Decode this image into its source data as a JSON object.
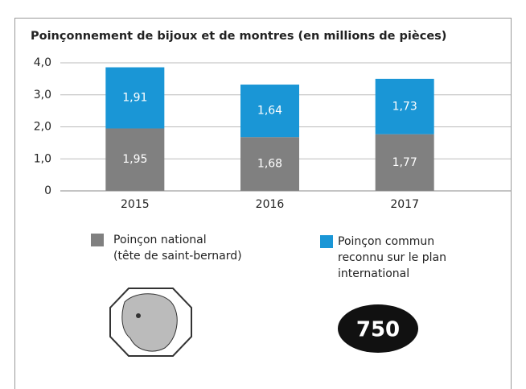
{
  "chart_data": {
    "type": "stacked_bar",
    "title": "Poinçonnement de bijoux et de montres (en millions de pièces)",
    "categories": [
      "2015",
      "2016",
      "2017"
    ],
    "series": [
      {
        "name": "Poinçon national\n(tête de saint-bernard)",
        "color": "#808080",
        "values": [
          1.95,
          1.68,
          1.77
        ],
        "value_labels": [
          "1,95",
          "1,68",
          "1,77"
        ]
      },
      {
        "name": "Poinçon commun\nreconnu sur le plan\ninternational",
        "color": "#1a96d6",
        "values": [
          1.91,
          1.64,
          1.73
        ],
        "value_labels": [
          "1,91",
          "1,64",
          "1,73"
        ]
      }
    ],
    "ylim": [
      0,
      4
    ],
    "yticks": [
      {
        "value": 0,
        "label": "0"
      },
      {
        "value": 1,
        "label": "1,0"
      },
      {
        "value": 2,
        "label": "2,0"
      },
      {
        "value": 3,
        "label": "3,0"
      },
      {
        "value": 4,
        "label": "4,0"
      }
    ],
    "grid": true,
    "annotations": [
      "750"
    ]
  }
}
